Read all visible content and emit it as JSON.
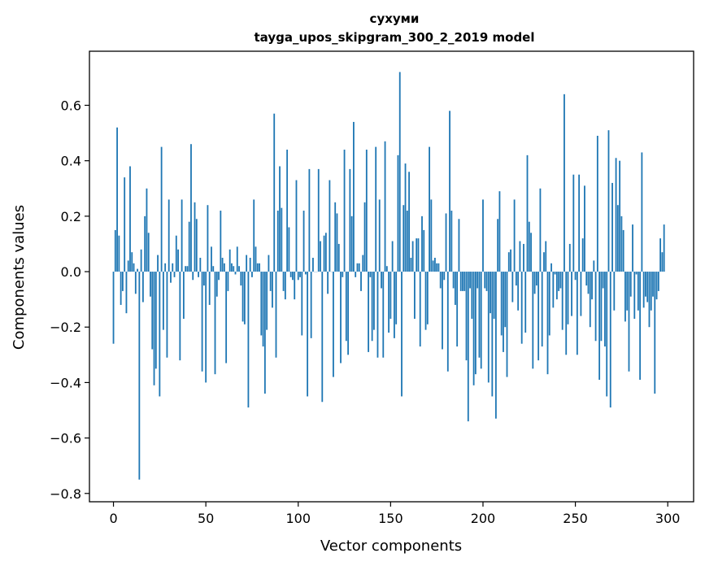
{
  "chart_data": {
    "type": "bar",
    "title": "сухуми",
    "subtitle": "tayga_upos_skipgram_300_2_2019 model",
    "xlabel": "Vector components",
    "ylabel": "Components values",
    "xlim": [
      -13,
      314
    ],
    "ylim": [
      -0.83,
      0.795
    ],
    "xticks": [
      0,
      50,
      100,
      150,
      200,
      250,
      300
    ],
    "xtick_labels": [
      "0",
      "50",
      "100",
      "150",
      "200",
      "250",
      "300"
    ],
    "yticks": [
      -0.8,
      -0.6,
      -0.4,
      -0.2,
      0.0,
      0.2,
      0.4,
      0.6
    ],
    "ytick_labels": [
      "−0.8",
      "−0.6",
      "−0.4",
      "−0.2",
      "0.0",
      "0.2",
      "0.4",
      "0.6"
    ],
    "grid": false,
    "bar_color": "#1f77b4",
    "x_start": 0,
    "values": [
      -0.26,
      0.15,
      0.52,
      0.13,
      -0.12,
      -0.07,
      0.34,
      -0.15,
      0.04,
      0.38,
      0.07,
      0.03,
      -0.08,
      0.01,
      -0.75,
      0.08,
      -0.11,
      0.2,
      0.3,
      0.14,
      -0.09,
      -0.28,
      -0.41,
      -0.35,
      0.06,
      -0.45,
      0.45,
      -0.21,
      0.03,
      -0.31,
      0.26,
      -0.04,
      0.03,
      -0.02,
      0.13,
      0.08,
      -0.32,
      0.26,
      -0.17,
      0.02,
      0.02,
      0.18,
      0.46,
      -0.03,
      0.25,
      0.19,
      -0.02,
      0.05,
      -0.36,
      -0.05,
      -0.4,
      0.24,
      -0.12,
      0.09,
      0.02,
      -0.37,
      -0.09,
      -0.03,
      0.22,
      0.05,
      0.03,
      -0.33,
      -0.07,
      0.08,
      0.03,
      0.02,
      -0.01,
      0.09,
      0.02,
      -0.05,
      -0.18,
      -0.19,
      0.06,
      -0.49,
      0.05,
      -0.02,
      0.26,
      0.09,
      0.03,
      0.03,
      -0.23,
      -0.27,
      -0.44,
      -0.21,
      0.06,
      -0.07,
      -0.13,
      0.57,
      -0.31,
      0.22,
      0.38,
      0.23,
      -0.07,
      -0.1,
      0.44,
      0.16,
      -0.02,
      -0.03,
      -0.1,
      0.33,
      -0.03,
      -0.02,
      -0.23,
      0.22,
      -0.01,
      -0.45,
      0.37,
      -0.24,
      0.05,
      0.0,
      0.0,
      0.37,
      0.11,
      -0.47,
      0.13,
      0.14,
      -0.08,
      0.33,
      0.0,
      -0.38,
      0.25,
      0.21,
      0.1,
      -0.33,
      -0.02,
      0.44,
      -0.25,
      -0.3,
      0.37,
      0.2,
      0.54,
      -0.02,
      0.03,
      0.03,
      -0.07,
      0.06,
      0.25,
      0.44,
      -0.29,
      -0.02,
      -0.25,
      -0.21,
      0.45,
      -0.31,
      0.26,
      -0.06,
      -0.31,
      0.47,
      0.02,
      -0.22,
      -0.17,
      0.11,
      -0.24,
      -0.19,
      0.42,
      0.72,
      -0.45,
      0.24,
      0.39,
      0.22,
      0.36,
      0.05,
      0.11,
      -0.17,
      0.12,
      0.12,
      -0.27,
      0.2,
      0.15,
      -0.21,
      -0.19,
      0.45,
      0.26,
      0.04,
      0.05,
      0.03,
      0.03,
      -0.06,
      -0.28,
      -0.03,
      0.21,
      -0.36,
      0.58,
      0.22,
      -0.06,
      -0.12,
      -0.27,
      0.19,
      -0.07,
      -0.07,
      -0.07,
      -0.32,
      -0.54,
      -0.06,
      -0.17,
      -0.41,
      -0.37,
      -0.06,
      -0.31,
      -0.35,
      0.26,
      -0.06,
      -0.07,
      -0.4,
      -0.15,
      -0.45,
      -0.17,
      -0.53,
      0.19,
      0.29,
      -0.23,
      -0.29,
      -0.2,
      -0.38,
      0.07,
      0.08,
      -0.11,
      0.26,
      -0.05,
      -0.14,
      0.11,
      -0.26,
      0.1,
      -0.22,
      0.42,
      0.18,
      0.14,
      -0.35,
      -0.08,
      -0.05,
      -0.32,
      0.3,
      -0.27,
      0.07,
      0.11,
      -0.37,
      -0.23,
      0.03,
      -0.13,
      -0.01,
      -0.1,
      -0.07,
      -0.06,
      -0.21,
      0.64,
      -0.3,
      -0.19,
      0.1,
      -0.16,
      0.35,
      -0.03,
      -0.3,
      0.35,
      -0.16,
      0.12,
      0.31,
      -0.05,
      -0.08,
      -0.2,
      -0.1,
      0.04,
      -0.25,
      0.49,
      -0.39,
      -0.25,
      -0.06,
      -0.27,
      -0.45,
      0.51,
      -0.49,
      0.32,
      -0.14,
      0.41,
      0.24,
      0.4,
      0.2,
      0.15,
      -0.18,
      -0.14,
      -0.36,
      -0.09,
      0.17,
      -0.17,
      -0.01,
      -0.14,
      -0.39,
      0.43,
      -0.13,
      -0.09,
      -0.11,
      -0.2,
      -0.14,
      -0.09,
      -0.44,
      -0.1,
      -0.07,
      0.12,
      0.07,
      0.17
    ]
  }
}
